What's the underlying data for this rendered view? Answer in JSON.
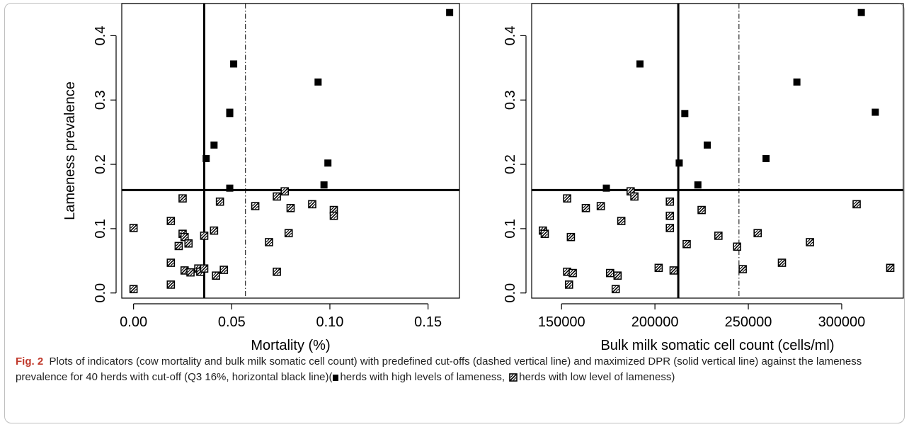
{
  "chart_data": [
    {
      "type": "scatter",
      "xlabel": "Mortality (%)",
      "ylabel": "Lameness prevalence",
      "xlim": [
        -0.006,
        0.166
      ],
      "ylim": [
        -0.008,
        0.45
      ],
      "xticks": [
        "0.00",
        "0.05",
        "0.10",
        "0.15"
      ],
      "xtick_values": [
        0,
        0.05,
        0.1,
        0.15
      ],
      "yticks": [
        "0.0",
        "0.1",
        "0.2",
        "0.3",
        "0.4"
      ],
      "ytick_values": [
        0.0,
        0.1,
        0.2,
        0.3,
        0.4
      ],
      "hline": 0.16,
      "solid_vline": 0.036,
      "dashed_vline": 0.057,
      "series": [
        {
          "name": "herds with high levels of lameness",
          "marker": "filled-square",
          "points": [
            [
              0.161,
              0.436
            ],
            [
              0.051,
              0.356
            ],
            [
              0.094,
              0.328
            ],
            [
              0.049,
              0.281
            ],
            [
              0.049,
              0.279
            ],
            [
              0.041,
              0.23
            ],
            [
              0.037,
              0.209
            ],
            [
              0.099,
              0.202
            ],
            [
              0.097,
              0.168
            ],
            [
              0.049,
              0.163
            ]
          ]
        },
        {
          "name": "herds with low level of lameness",
          "marker": "hatched-square",
          "points": [
            [
              0.0,
              0.101
            ],
            [
              0.0,
              0.006
            ],
            [
              0.019,
              0.112
            ],
            [
              0.019,
              0.047
            ],
            [
              0.019,
              0.013
            ],
            [
              0.023,
              0.073
            ],
            [
              0.025,
              0.147
            ],
            [
              0.025,
              0.092
            ],
            [
              0.026,
              0.087
            ],
            [
              0.026,
              0.035
            ],
            [
              0.028,
              0.077
            ],
            [
              0.029,
              0.032
            ],
            [
              0.033,
              0.038
            ],
            [
              0.034,
              0.033
            ],
            [
              0.036,
              0.038
            ],
            [
              0.036,
              0.089
            ],
            [
              0.041,
              0.097
            ],
            [
              0.042,
              0.027
            ],
            [
              0.044,
              0.142
            ],
            [
              0.046,
              0.036
            ],
            [
              0.062,
              0.135
            ],
            [
              0.069,
              0.079
            ],
            [
              0.073,
              0.15
            ],
            [
              0.073,
              0.033
            ],
            [
              0.077,
              0.158
            ],
            [
              0.079,
              0.093
            ],
            [
              0.08,
              0.132
            ],
            [
              0.091,
              0.138
            ],
            [
              0.102,
              0.129
            ],
            [
              0.102,
              0.12
            ]
          ]
        }
      ]
    },
    {
      "type": "scatter",
      "xlabel": "Bulk milk somatic cell count (cells/ml)",
      "ylabel": "",
      "xlim": [
        134000,
        333000
      ],
      "ylim": [
        -0.008,
        0.45
      ],
      "xticks": [
        "150000",
        "200000",
        "250000",
        "300000"
      ],
      "xtick_values": [
        150000,
        200000,
        250000,
        300000
      ],
      "yticks": [
        "0.0",
        "0.1",
        "0.2",
        "0.3",
        "0.4"
      ],
      "ytick_values": [
        0.0,
        0.1,
        0.2,
        0.3,
        0.4
      ],
      "hline": 0.16,
      "solid_vline": 212500,
      "dashed_vline": 245000,
      "series": [
        {
          "name": "herds with high levels of lameness",
          "marker": "filled-square",
          "points": [
            [
              310500,
              0.436
            ],
            [
              192000,
              0.356
            ],
            [
              276000,
              0.328
            ],
            [
              318000,
              0.281
            ],
            [
              216000,
              0.279
            ],
            [
              228000,
              0.23
            ],
            [
              259500,
              0.209
            ],
            [
              213000,
              0.202
            ],
            [
              223000,
              0.168
            ],
            [
              174000,
              0.163
            ]
          ]
        },
        {
          "name": "herds with low level of lameness",
          "marker": "hatched-square",
          "points": [
            [
              140000,
              0.097
            ],
            [
              141000,
              0.092
            ],
            [
              153000,
              0.147
            ],
            [
              153000,
              0.033
            ],
            [
              154000,
              0.013
            ],
            [
              155000,
              0.087
            ],
            [
              156000,
              0.031
            ],
            [
              163000,
              0.132
            ],
            [
              171000,
              0.135
            ],
            [
              176000,
              0.031
            ],
            [
              179000,
              0.006
            ],
            [
              180000,
              0.027
            ],
            [
              182000,
              0.112
            ],
            [
              187000,
              0.158
            ],
            [
              189000,
              0.15
            ],
            [
              202000,
              0.039
            ],
            [
              208000,
              0.142
            ],
            [
              208000,
              0.12
            ],
            [
              208000,
              0.101
            ],
            [
              210000,
              0.035
            ],
            [
              217000,
              0.076
            ],
            [
              225000,
              0.129
            ],
            [
              234000,
              0.089
            ],
            [
              244000,
              0.072
            ],
            [
              247000,
              0.037
            ],
            [
              255000,
              0.093
            ],
            [
              268000,
              0.047
            ],
            [
              283000,
              0.079
            ],
            [
              308000,
              0.138
            ],
            [
              326000,
              0.039
            ]
          ]
        }
      ]
    }
  ],
  "caption": {
    "label": "Fig. 2",
    "text_before_marker1": "Plots of indicators (cow mortality and bulk milk somatic cell count) with predefined cut-offs (dashed vertical line) and maximized DPR (solid vertical line) against the lameness prevalence for 40 herds with cut-off (Q3 16%, horizontal black line)(",
    "text_after_marker1": "herds with high levels of lameness, ",
    "text_after_marker2": "herds with low level of lameness)"
  }
}
